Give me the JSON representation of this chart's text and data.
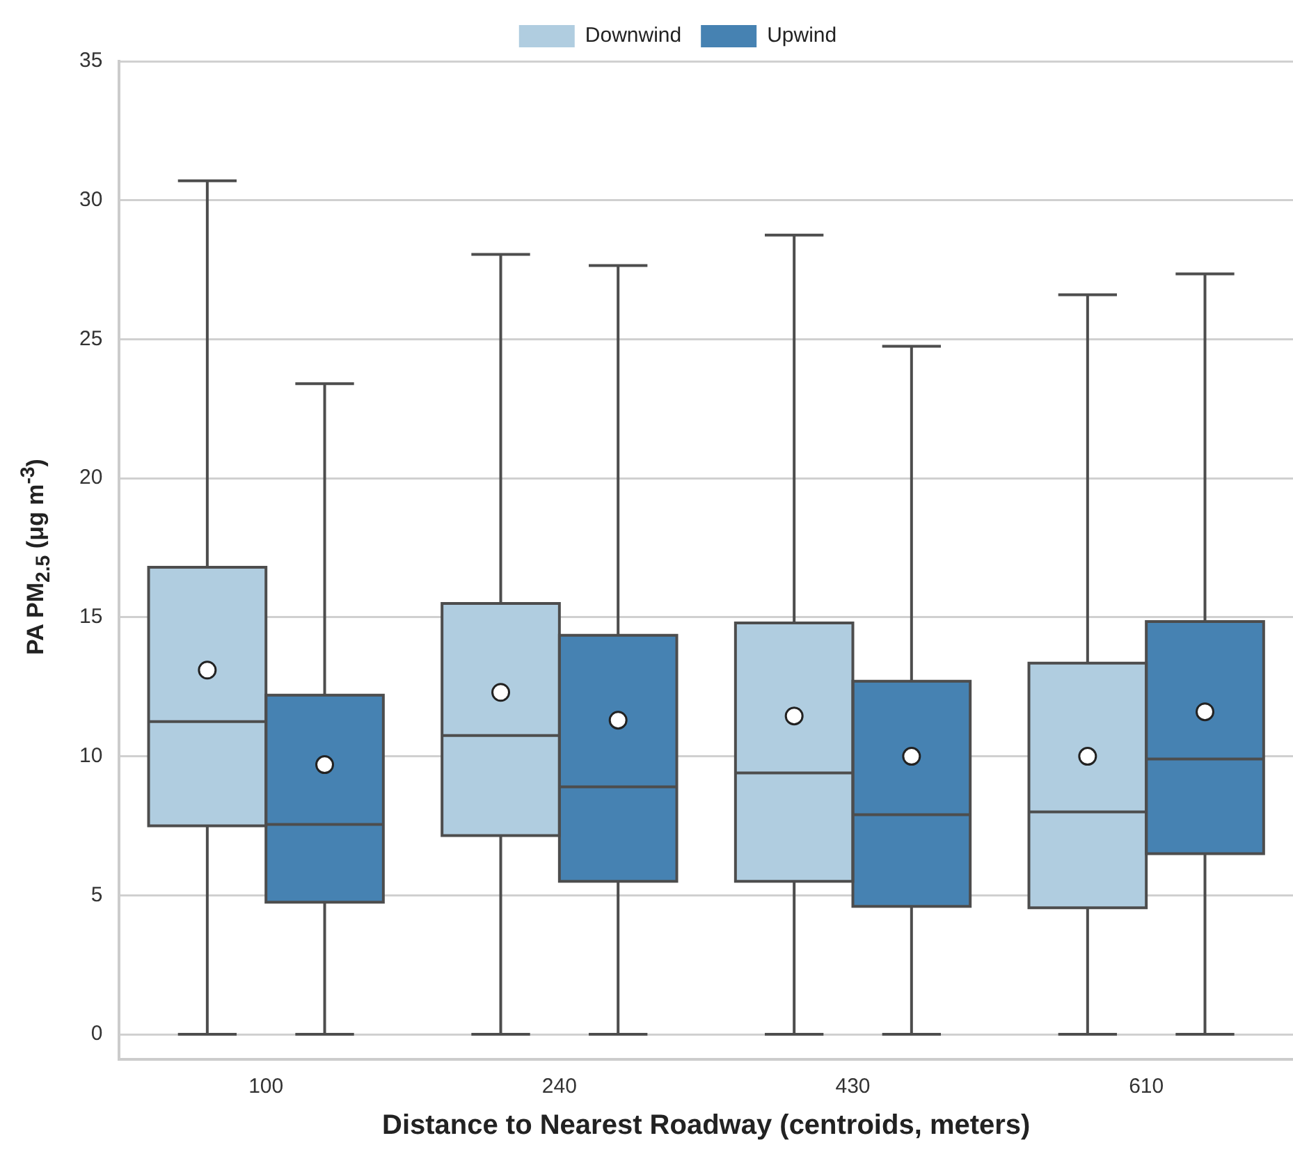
{
  "chart_data": {
    "type": "box",
    "xlabel": "Distance to Nearest Roadway (centroids, meters)",
    "ylabel": "PA PM$_{2.5}$ (μg m$^{-3}$)",
    "categories": [
      "100",
      "240",
      "430",
      "610"
    ],
    "ylim": [
      -0.9,
      35
    ],
    "yticks": [
      0,
      5,
      10,
      15,
      20,
      25,
      30,
      35
    ],
    "grid": "y",
    "legend": "top",
    "series": [
      {
        "name": "Downwind",
        "color": "#b0cde0",
        "boxes": [
          {
            "low": 0,
            "q1": 7.5,
            "median": 11.25,
            "q3": 16.8,
            "high": 30.7,
            "mean": 13.1
          },
          {
            "low": 0,
            "q1": 7.15,
            "median": 10.75,
            "q3": 15.5,
            "high": 28.05,
            "mean": 12.3
          },
          {
            "low": 0,
            "q1": 5.5,
            "median": 9.4,
            "q3": 14.8,
            "high": 28.75,
            "mean": 11.45
          },
          {
            "low": 0,
            "q1": 4.55,
            "median": 8.0,
            "q3": 13.35,
            "high": 26.6,
            "mean": 10.0
          }
        ]
      },
      {
        "name": "Upwind",
        "color": "#4682b2",
        "boxes": [
          {
            "low": 0,
            "q1": 4.75,
            "median": 7.55,
            "q3": 12.2,
            "high": 23.4,
            "mean": 9.7
          },
          {
            "low": 0,
            "q1": 5.5,
            "median": 8.9,
            "q3": 14.35,
            "high": 27.65,
            "mean": 11.3
          },
          {
            "low": 0,
            "q1": 4.6,
            "median": 7.9,
            "q3": 12.7,
            "high": 24.75,
            "mean": 10.0
          },
          {
            "low": 0,
            "q1": 6.5,
            "median": 9.9,
            "q3": 14.85,
            "high": 27.35,
            "mean": 11.6
          }
        ]
      }
    ]
  }
}
